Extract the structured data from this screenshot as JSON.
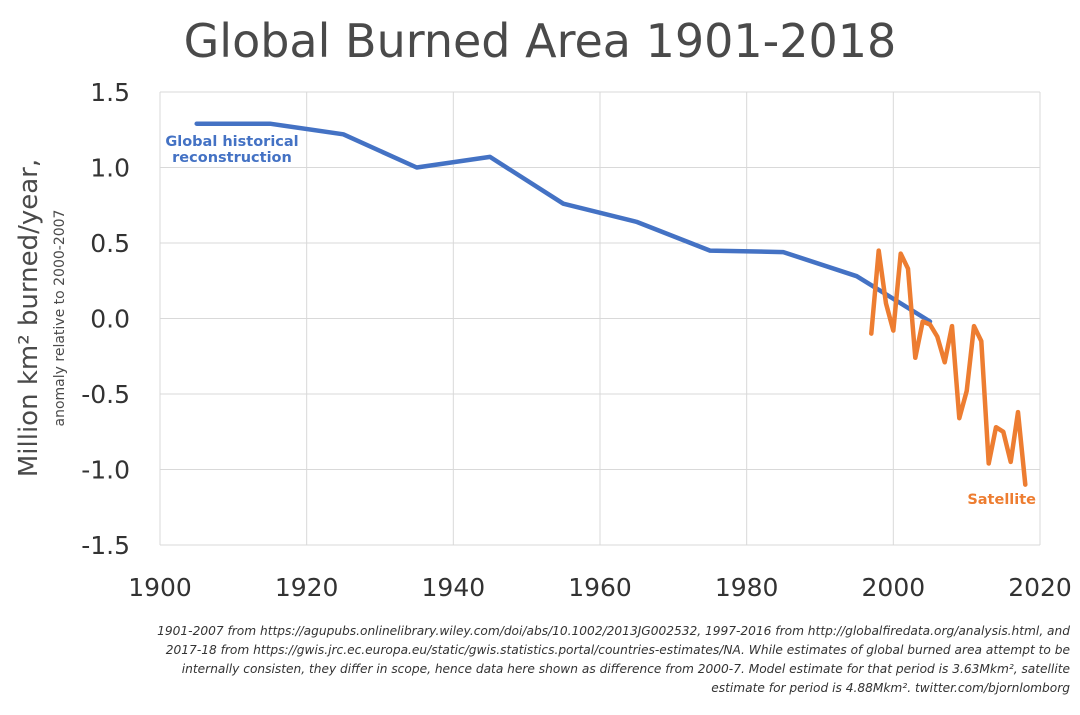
{
  "chart_data": {
    "type": "line",
    "title": "Global Burned Area 1901-2018",
    "ylabel": "Million km² burned/year,",
    "ylabel_sub": "anomaly relative to 2000-2007",
    "xlim": [
      1900,
      2020
    ],
    "ylim": [
      -1.5,
      1.5
    ],
    "x_ticks": [
      "1900",
      "1920",
      "1940",
      "1960",
      "1980",
      "2000",
      "2020"
    ],
    "y_ticks": [
      "1.5",
      "1.0",
      "0.5",
      "0.0",
      "-0.5",
      "-1.0",
      "-1.5"
    ],
    "grid": true,
    "series": [
      {
        "name": "Global historical reconstruction",
        "name_lines": [
          "Global historical",
          "reconstruction"
        ],
        "color": "#4472c4",
        "points": [
          [
            1905,
            1.29
          ],
          [
            1915,
            1.29
          ],
          [
            1925,
            1.22
          ],
          [
            1935,
            1.0
          ],
          [
            1945,
            1.07
          ],
          [
            1955,
            0.76
          ],
          [
            1965,
            0.64
          ],
          [
            1975,
            0.45
          ],
          [
            1985,
            0.44
          ],
          [
            1995,
            0.28
          ],
          [
            2005,
            -0.02
          ]
        ]
      },
      {
        "name": "Satellite",
        "name_lines": [
          "Satellite"
        ],
        "color": "#ed7d31",
        "points": [
          [
            1997,
            -0.1
          ],
          [
            1998,
            0.45
          ],
          [
            1999,
            0.1
          ],
          [
            2000,
            -0.08
          ],
          [
            2001,
            0.43
          ],
          [
            2002,
            0.33
          ],
          [
            2003,
            -0.26
          ],
          [
            2004,
            -0.02
          ],
          [
            2005,
            -0.04
          ],
          [
            2006,
            -0.12
          ],
          [
            2007,
            -0.29
          ],
          [
            2008,
            -0.05
          ],
          [
            2009,
            -0.66
          ],
          [
            2010,
            -0.48
          ],
          [
            2011,
            -0.05
          ],
          [
            2012,
            -0.15
          ],
          [
            2013,
            -0.96
          ],
          [
            2014,
            -0.72
          ],
          [
            2015,
            -0.75
          ],
          [
            2016,
            -0.95
          ],
          [
            2017,
            -0.62
          ],
          [
            2018,
            -1.1
          ]
        ]
      }
    ]
  },
  "footnote": [
    "1901-2007 from https://agupubs.onlinelibrary.wiley.com/doi/abs/10.1002/2013JG002532, 1997-2016 from http://globalfiredata.org/analysis.html, and",
    "2017-18 from  https://gwis.jrc.ec.europa.eu/static/gwis.statistics.portal/countries-estimates/NA. While estimates of global burned area attempt to be",
    "internally consisten, they differ in scope, hence data here shown as difference from 2000-7. Model estimate for that period is 3.63Mkm², satellite",
    "estimate for period is 4.88Mkm². twitter.com/bjornlomborg"
  ]
}
